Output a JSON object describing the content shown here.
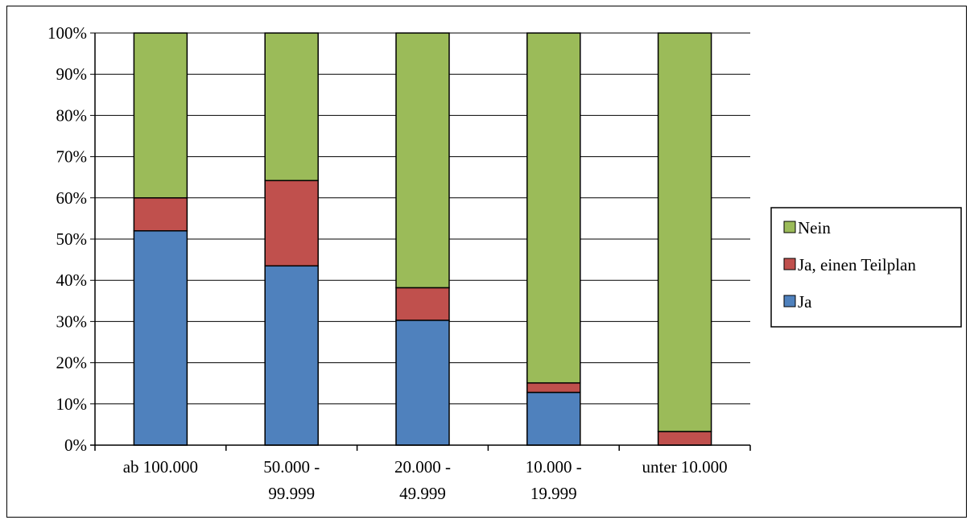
{
  "chart_data": {
    "type": "bar",
    "stacked": true,
    "percent_stacked": true,
    "categories": [
      [
        "ab 100.000"
      ],
      [
        "50.000 -",
        "99.999"
      ],
      [
        "20.000 -",
        "49.999"
      ],
      [
        "10.000 -",
        "19.999"
      ],
      [
        "unter 10.000"
      ]
    ],
    "series": [
      {
        "name": "Ja",
        "color": "#4F81BD",
        "values": [
          52,
          43.5,
          30.3,
          12.8,
          0
        ]
      },
      {
        "name": "Ja, einen Teilplan",
        "color": "#C0504D",
        "values": [
          8,
          20.7,
          7.9,
          2.3,
          3.3
        ]
      },
      {
        "name": "Nein",
        "color": "#9BBB59",
        "values": [
          40,
          35.8,
          61.8,
          84.9,
          96.7
        ]
      }
    ],
    "yticks": [
      "0%",
      "10%",
      "20%",
      "30%",
      "40%",
      "50%",
      "60%",
      "70%",
      "80%",
      "90%",
      "100%"
    ],
    "ylim": [
      0,
      100
    ],
    "grid": true,
    "legend": {
      "placement": "right",
      "order": [
        "Nein",
        "Ja, einen Teilplan",
        "Ja"
      ]
    }
  }
}
